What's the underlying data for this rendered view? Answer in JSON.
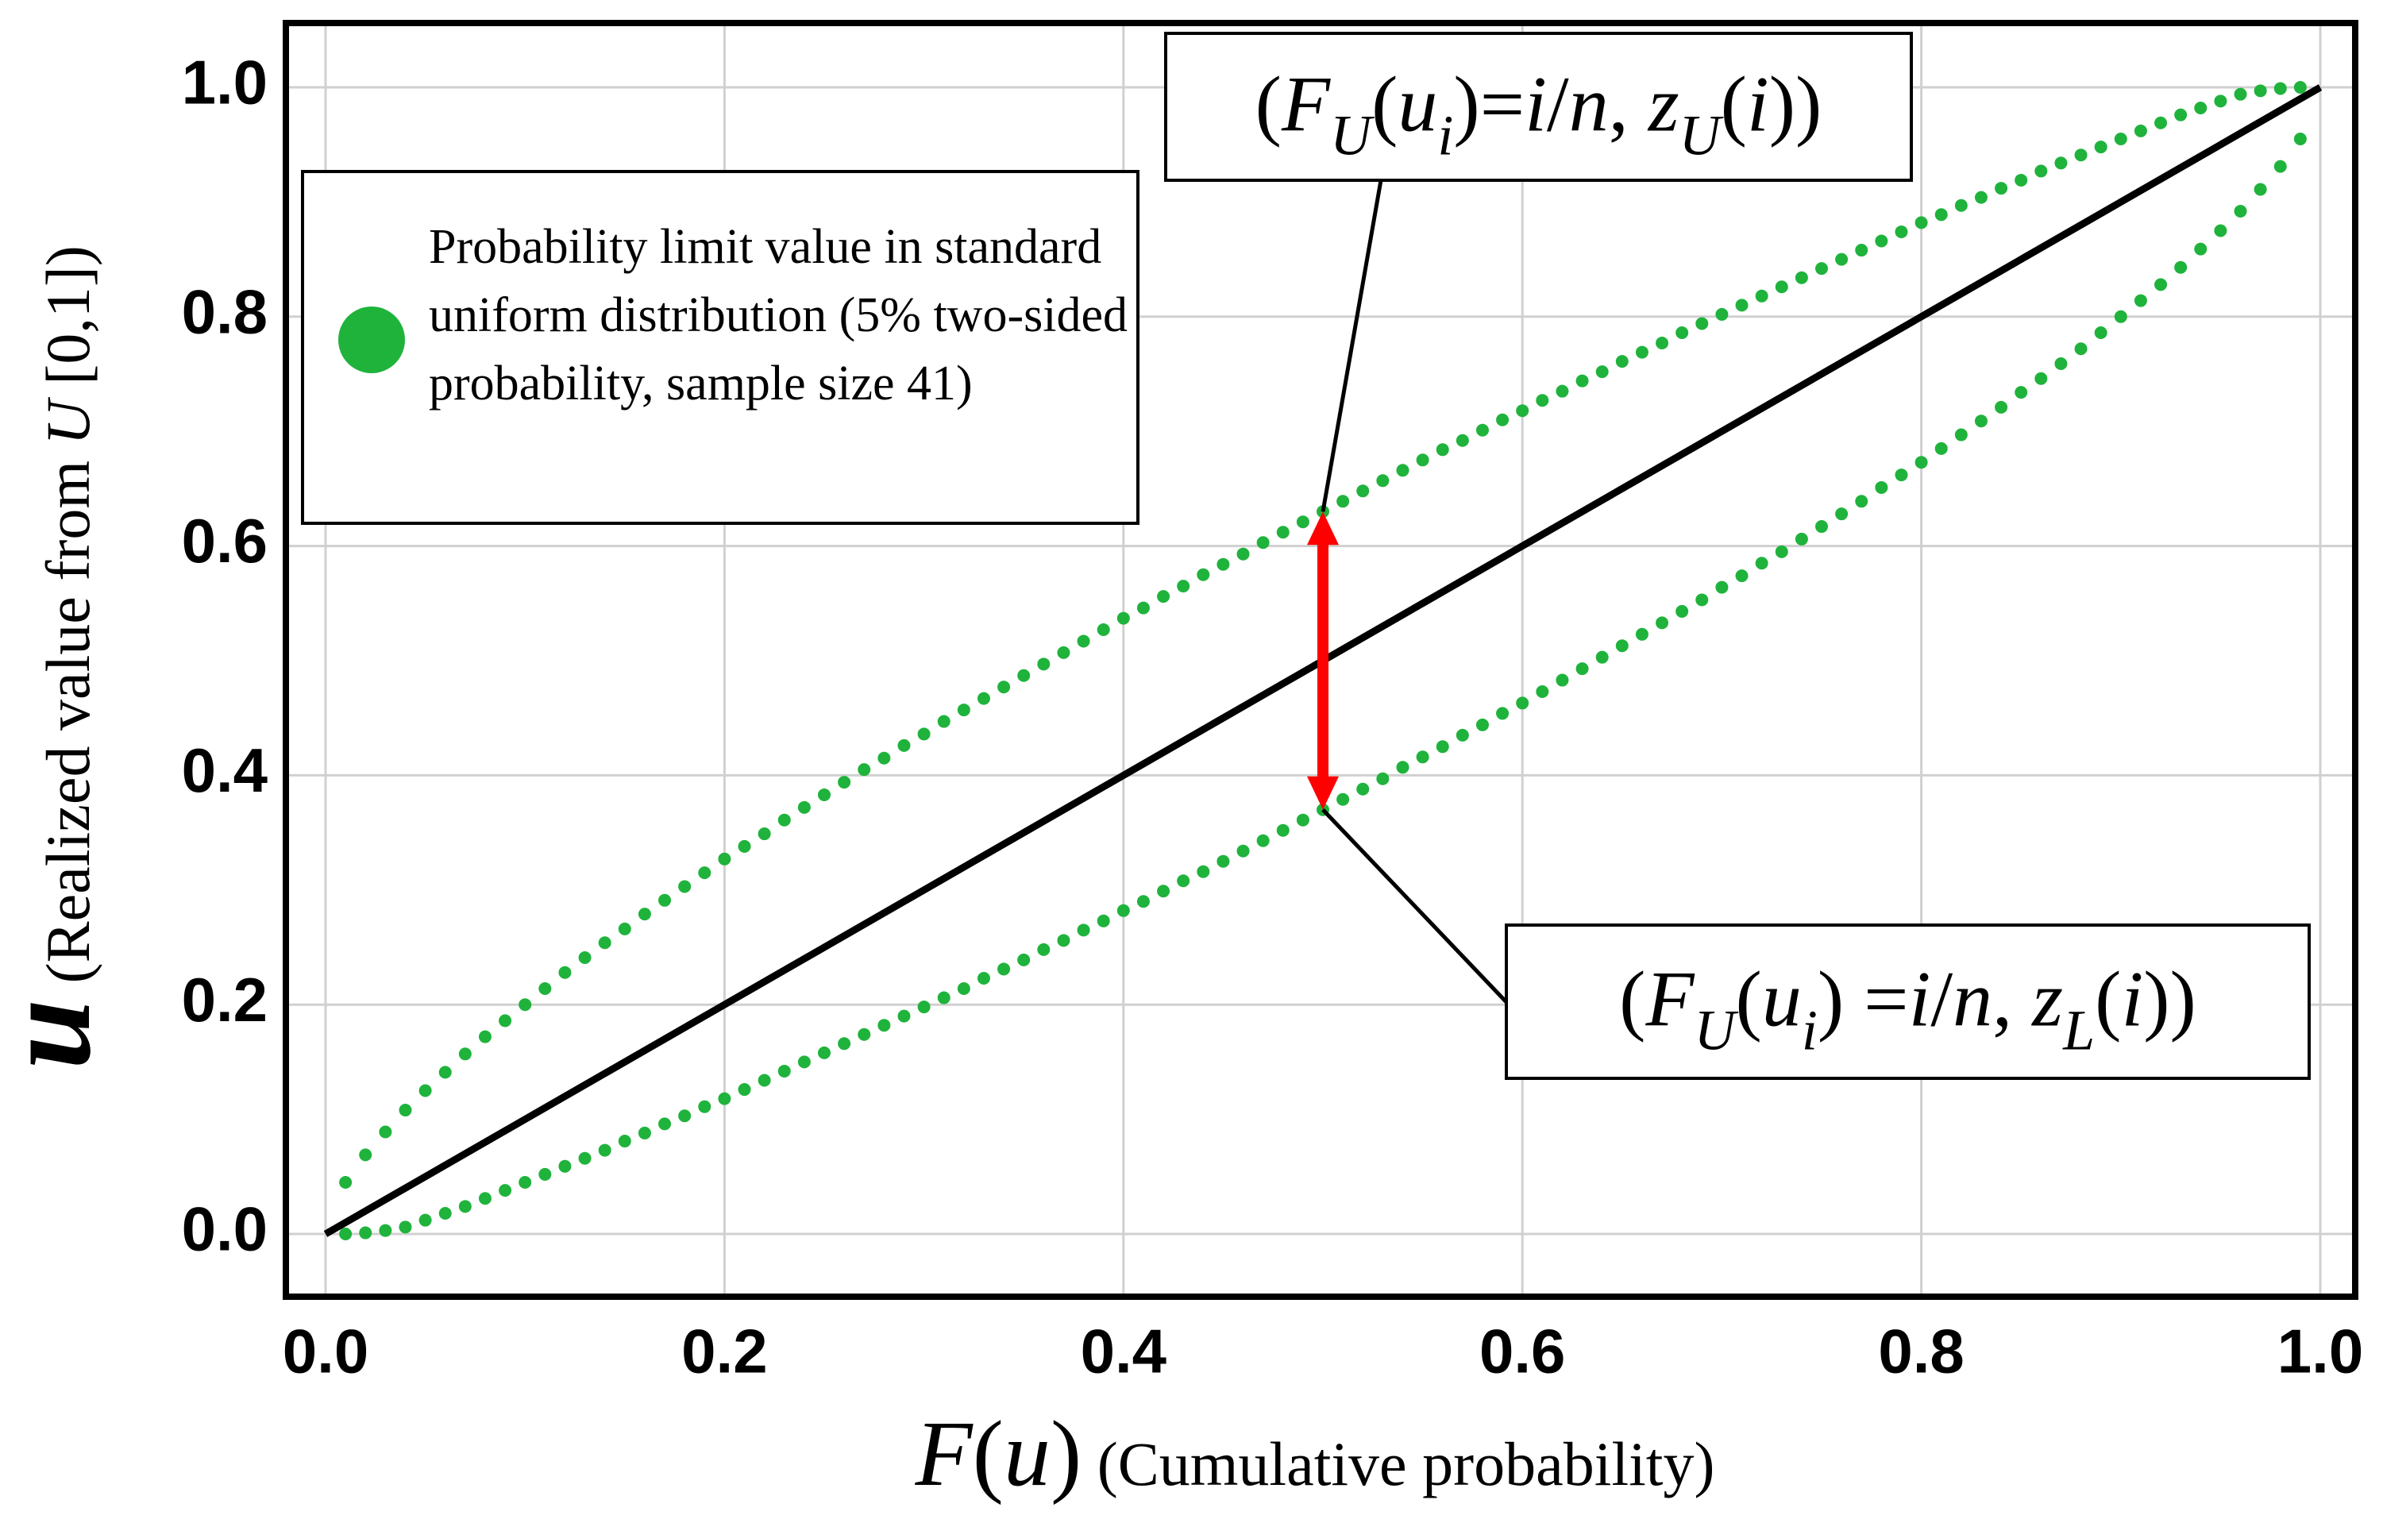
{
  "chart_data": {
    "type": "scatter",
    "xlabel": {
      "segments": [
        {
          "text": "F",
          "style": "large italic"
        },
        {
          "text": "(",
          "style": "large"
        },
        {
          "text": "u",
          "style": "large italic"
        },
        {
          "text": ")",
          "style": "large"
        },
        {
          "text": " (Cumulative probability)",
          "style": ""
        }
      ]
    },
    "ylabel": {
      "segments": [
        {
          "text": "u",
          "style": "large italic bold"
        },
        {
          "text": " (Realized value from ",
          "style": ""
        },
        {
          "text": "U",
          "style": "italic"
        },
        {
          "text": " [0,1])",
          "style": ""
        }
      ]
    },
    "xlim": [
      0,
      1
    ],
    "ylim": [
      0,
      1
    ],
    "xticks": [
      {
        "value": 0,
        "label": "0.0"
      },
      0.2,
      0.4,
      0.6,
      0.8,
      {
        "value": 1,
        "label": "1.0"
      }
    ],
    "yticks": [
      {
        "value": 0,
        "label": "0.0"
      },
      0.2,
      0.4,
      0.6,
      0.8,
      {
        "value": 1,
        "label": "1.0"
      }
    ],
    "grid": true,
    "legend": "upper left",
    "series": [
      {
        "name": "Probability limit value in standard uniform distribution (5% two-sided probability, sample size 41)",
        "color": "#1fb33c",
        "x": [
          0.01,
          0.02,
          0.03,
          0.04,
          0.05,
          0.06,
          0.07,
          0.08,
          0.09,
          0.1,
          0.11,
          0.12,
          0.13,
          0.14,
          0.15,
          0.16,
          0.17,
          0.18,
          0.19,
          0.2,
          0.21,
          0.22,
          0.23,
          0.24,
          0.25,
          0.26,
          0.27,
          0.28,
          0.29,
          0.3,
          0.31,
          0.32,
          0.33,
          0.34,
          0.35,
          0.36,
          0.37,
          0.38,
          0.39,
          0.4,
          0.41,
          0.42,
          0.43,
          0.44,
          0.45,
          0.46,
          0.47,
          0.48,
          0.49,
          0.5,
          0.51,
          0.52,
          0.53,
          0.54,
          0.55,
          0.56,
          0.57,
          0.58,
          0.59,
          0.6,
          0.61,
          0.62,
          0.63,
          0.64,
          0.65,
          0.66,
          0.67,
          0.68,
          0.69,
          0.7,
          0.71,
          0.72,
          0.73,
          0.74,
          0.75,
          0.76,
          0.77,
          0.78,
          0.79,
          0.8,
          0.81,
          0.82,
          0.83,
          0.84,
          0.85,
          0.86,
          0.87,
          0.88,
          0.89,
          0.9,
          0.91,
          0.92,
          0.93,
          0.94,
          0.95,
          0.96,
          0.97,
          0.98,
          0.99
        ],
        "values": [
          0.045,
          0.069,
          0.089,
          0.108,
          0.125,
          0.141,
          0.157,
          0.172,
          0.186,
          0.2,
          0.214,
          0.228,
          0.241,
          0.254,
          0.266,
          0.279,
          0.291,
          0.303,
          0.315,
          0.327,
          0.338,
          0.349,
          0.361,
          0.372,
          0.383,
          0.394,
          0.405,
          0.415,
          0.426,
          0.436,
          0.447,
          0.457,
          0.467,
          0.477,
          0.487,
          0.497,
          0.507,
          0.517,
          0.527,
          0.537,
          0.546,
          0.556,
          0.565,
          0.575,
          0.584,
          0.593,
          0.603,
          0.612,
          0.621,
          0.63,
          0.639,
          0.648,
          0.657,
          0.666,
          0.675,
          0.684,
          0.692,
          0.701,
          0.71,
          0.718,
          0.727,
          0.735,
          0.744,
          0.752,
          0.761,
          0.769,
          0.777,
          0.786,
          0.794,
          0.802,
          0.81,
          0.818,
          0.826,
          0.834,
          0.842,
          0.85,
          0.858,
          0.866,
          0.874,
          0.882,
          0.889,
          0.897,
          0.904,
          0.912,
          0.919,
          0.927,
          0.934,
          0.941,
          0.948,
          0.955,
          0.962,
          0.969,
          0.976,
          0.982,
          0.988,
          0.994,
          0.997,
          0.999,
          1.0
        ]
      },
      {
        "color": "#1fb33c",
        "x": [
          0.01,
          0.02,
          0.03,
          0.04,
          0.05,
          0.06,
          0.07,
          0.08,
          0.09,
          0.1,
          0.11,
          0.12,
          0.13,
          0.14,
          0.15,
          0.16,
          0.17,
          0.18,
          0.19,
          0.2,
          0.21,
          0.22,
          0.23,
          0.24,
          0.25,
          0.26,
          0.27,
          0.28,
          0.29,
          0.3,
          0.31,
          0.32,
          0.33,
          0.34,
          0.35,
          0.36,
          0.37,
          0.38,
          0.39,
          0.4,
          0.41,
          0.42,
          0.43,
          0.44,
          0.45,
          0.46,
          0.47,
          0.48,
          0.49,
          0.5,
          0.51,
          0.52,
          0.53,
          0.54,
          0.55,
          0.56,
          0.57,
          0.58,
          0.59,
          0.6,
          0.61,
          0.62,
          0.63,
          0.64,
          0.65,
          0.66,
          0.67,
          0.68,
          0.69,
          0.7,
          0.71,
          0.72,
          0.73,
          0.74,
          0.75,
          0.76,
          0.77,
          0.78,
          0.79,
          0.8,
          0.81,
          0.82,
          0.83,
          0.84,
          0.85,
          0.86,
          0.87,
          0.88,
          0.89,
          0.9,
          0.91,
          0.92,
          0.93,
          0.94,
          0.95,
          0.96,
          0.97,
          0.98,
          0.99
        ],
        "values": [
          0,
          0.001,
          0.003,
          0.006,
          0.012,
          0.018,
          0.024,
          0.031,
          0.038,
          0.045,
          0.052,
          0.059,
          0.066,
          0.073,
          0.081,
          0.088,
          0.096,
          0.103,
          0.111,
          0.118,
          0.126,
          0.134,
          0.142,
          0.15,
          0.158,
          0.166,
          0.174,
          0.182,
          0.19,
          0.198,
          0.206,
          0.214,
          0.223,
          0.231,
          0.239,
          0.248,
          0.256,
          0.265,
          0.273,
          0.282,
          0.29,
          0.299,
          0.308,
          0.316,
          0.325,
          0.334,
          0.343,
          0.352,
          0.361,
          0.37,
          0.379,
          0.388,
          0.397,
          0.407,
          0.416,
          0.425,
          0.435,
          0.444,
          0.454,
          0.463,
          0.473,
          0.483,
          0.493,
          0.503,
          0.513,
          0.523,
          0.533,
          0.543,
          0.553,
          0.564,
          0.574,
          0.585,
          0.595,
          0.606,
          0.617,
          0.628,
          0.639,
          0.651,
          0.662,
          0.673,
          0.685,
          0.697,
          0.709,
          0.721,
          0.734,
          0.746,
          0.759,
          0.772,
          0.786,
          0.8,
          0.814,
          0.828,
          0.843,
          0.859,
          0.875,
          0.892,
          0.911,
          0.931,
          0.955
        ]
      },
      {
        "type": "line",
        "color": "#000000",
        "x": [
          0,
          1
        ],
        "values": [
          0,
          1
        ]
      }
    ],
    "arrow": {
      "x": 0.5,
      "from": 0.37,
      "to": 0.63,
      "color": "#ff0000"
    },
    "annotations": [
      {
        "xy": [
          0.5,
          0.63
        ],
        "segments": [
          {
            "text": "(",
            "style": ""
          },
          {
            "text": "F",
            "style": "italic"
          },
          {
            "text": "U",
            "style": "italic sub"
          },
          {
            "text": "(",
            "style": ""
          },
          {
            "text": "u",
            "style": "italic"
          },
          {
            "text": "i",
            "style": "italic sub"
          },
          {
            "text": ")=",
            "style": ""
          },
          {
            "text": "i",
            "style": "italic"
          },
          {
            "text": "/",
            "style": ""
          },
          {
            "text": "n",
            "style": "italic"
          },
          {
            "text": ", ",
            "style": ""
          },
          {
            "text": "z",
            "style": "italic"
          },
          {
            "text": "U",
            "style": "italic sub"
          },
          {
            "text": "(",
            "style": ""
          },
          {
            "text": "i",
            "style": "italic"
          },
          {
            "text": "))",
            "style": ""
          }
        ]
      },
      {
        "xy": [
          0.5,
          0.37
        ],
        "segments": [
          {
            "text": "(",
            "style": ""
          },
          {
            "text": "F",
            "style": "italic"
          },
          {
            "text": "U",
            "style": "italic sub"
          },
          {
            "text": "(",
            "style": ""
          },
          {
            "text": "u",
            "style": "italic"
          },
          {
            "text": "i",
            "style": "italic sub"
          },
          {
            "text": ") =",
            "style": ""
          },
          {
            "text": "i",
            "style": "italic"
          },
          {
            "text": "/",
            "style": ""
          },
          {
            "text": "n",
            "style": "italic"
          },
          {
            "text": ", ",
            "style": ""
          },
          {
            "text": "z",
            "style": "italic"
          },
          {
            "text": "L",
            "style": "italic sub"
          },
          {
            "text": "(",
            "style": ""
          },
          {
            "text": "i",
            "style": "italic"
          },
          {
            "text": "))",
            "style": ""
          }
        ]
      }
    ]
  }
}
